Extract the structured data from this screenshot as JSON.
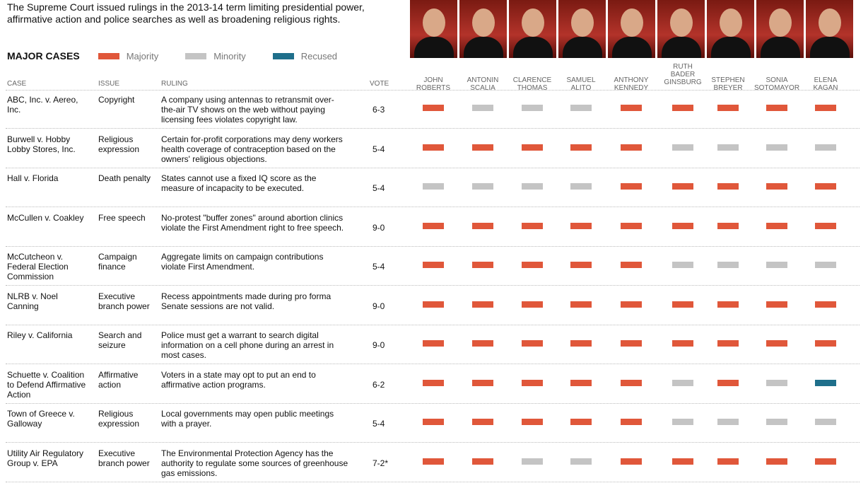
{
  "intro": "The Supreme Court issued rulings in the 2013-14 term limiting presidential power, affirmative action and police searches as well as broadening religious rights.",
  "legend": {
    "title": "MAJOR CASES",
    "items": [
      {
        "label": "Majority",
        "color": "#e0573a"
      },
      {
        "label": "Minority",
        "color": "#c4c4c4"
      },
      {
        "label": "Recused",
        "color": "#1f6f8b"
      }
    ]
  },
  "columns": {
    "case": "CASE",
    "issue": "ISSUE",
    "ruling": "RULING",
    "vote": "VOTE"
  },
  "justices": [
    "JOHN ROBERTS",
    "ANTONIN SCALIA",
    "CLARENCE THOMAS",
    "SAMUEL ALITO",
    "ANTHONY KENNEDY",
    "RUTH BADER GINSBURG",
    "STEPHEN BREYER",
    "SONIA SOTOMAYOR",
    "ELENA KAGAN"
  ],
  "chart_data": {
    "type": "table",
    "rows": [
      {
        "case": "ABC, Inc. v. Aereo, Inc.",
        "issue": "Copyright",
        "ruling": "A company using antennas to retransmit over-the-air TV shows on the web without paying licensing fees violates copyright law.",
        "vote": "6-3",
        "votes": [
          "majority",
          "minority",
          "minority",
          "minority",
          "majority",
          "majority",
          "majority",
          "majority",
          "majority"
        ]
      },
      {
        "case": "Burwell v. Hobby Lobby Stores, Inc.",
        "issue": "Religious expression",
        "ruling": "Certain for-profit corporations may deny workers health coverage of contraception based on the owners' religious objections.",
        "vote": "5-4",
        "votes": [
          "majority",
          "majority",
          "majority",
          "majority",
          "majority",
          "minority",
          "minority",
          "minority",
          "minority"
        ]
      },
      {
        "case": "Hall v. Florida",
        "issue": "Death penalty",
        "ruling": "States cannot use a fixed IQ score as the measure of incapacity to be executed.",
        "vote": "5-4",
        "votes": [
          "minority",
          "minority",
          "minority",
          "minority",
          "majority",
          "majority",
          "majority",
          "majority",
          "majority"
        ]
      },
      {
        "case": "McCullen v. Coakley",
        "issue": "Free speech",
        "ruling": "No-protest \"buffer zones\" around abortion clinics violate the First Amendment right to free speech.",
        "vote": "9-0",
        "votes": [
          "majority",
          "majority",
          "majority",
          "majority",
          "majority",
          "majority",
          "majority",
          "majority",
          "majority"
        ]
      },
      {
        "case": "McCutcheon v. Federal Election Commission",
        "issue": "Campaign finance",
        "ruling": "Aggregate limits on campaign contributions violate First Amendment.",
        "vote": "5-4",
        "votes": [
          "majority",
          "majority",
          "majority",
          "majority",
          "majority",
          "minority",
          "minority",
          "minority",
          "minority"
        ]
      },
      {
        "case": "NLRB v. Noel Canning",
        "issue": "Executive branch power",
        "ruling": "Recess appointments made during pro forma Senate sessions are not valid.",
        "vote": "9-0",
        "votes": [
          "majority",
          "majority",
          "majority",
          "majority",
          "majority",
          "majority",
          "majority",
          "majority",
          "majority"
        ]
      },
      {
        "case": "Riley v. California",
        "issue": "Search and seizure",
        "ruling": "Police must get a warrant to search digital information on a cell phone during an arrest in most cases.",
        "vote": "9-0",
        "votes": [
          "majority",
          "majority",
          "majority",
          "majority",
          "majority",
          "majority",
          "majority",
          "majority",
          "majority"
        ]
      },
      {
        "case": "Schuette v. Coalition to Defend Affirmative Action",
        "issue": "Affirmative action",
        "ruling": "Voters in a state may opt to put an end to affirmative action programs.",
        "vote": "6-2",
        "votes": [
          "majority",
          "majority",
          "majority",
          "majority",
          "majority",
          "minority",
          "majority",
          "minority",
          "recused"
        ]
      },
      {
        "case": "Town of Greece v. Galloway",
        "issue": "Religious expression",
        "ruling": "Local governments may open public meetings with a prayer.",
        "vote": "5-4",
        "votes": [
          "majority",
          "majority",
          "majority",
          "majority",
          "majority",
          "minority",
          "minority",
          "minority",
          "minority"
        ]
      },
      {
        "case": "Utility Air Regulatory Group v. EPA",
        "issue": "Executive branch power",
        "ruling": "The Environmental Protection Agency has the authority to regulate some sources of greenhouse gas emissions.",
        "vote": "7-2*",
        "votes": [
          "majority",
          "majority",
          "minority",
          "minority",
          "majority",
          "majority",
          "majority",
          "majority",
          "majority"
        ]
      }
    ]
  }
}
